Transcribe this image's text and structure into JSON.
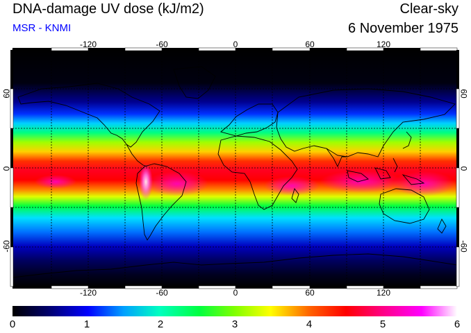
{
  "header": {
    "title": "DNA-damage UV dose (kJ/m2)",
    "credit": "MSR - KNMI",
    "sky_type": "Clear-sky",
    "date": "6 November 1975"
  },
  "map": {
    "projection": "equirectangular",
    "lon_range": [
      -180,
      180
    ],
    "lat_range": [
      -90,
      90
    ],
    "lon_ticks": [
      "-120",
      "-60",
      "0",
      "60",
      "120"
    ],
    "lat_ticks": [
      "60",
      "0",
      "-60"
    ],
    "gridlines": true
  },
  "colorbar": {
    "labels": [
      "0",
      "1",
      "2",
      "3",
      "4",
      "5",
      "6"
    ],
    "range": [
      0,
      6
    ],
    "colors": [
      "#000000",
      "#000070",
      "#0000ff",
      "#00a0ff",
      "#00ffff",
      "#00ff80",
      "#00ff00",
      "#c0ff00",
      "#ffff00",
      "#ffa000",
      "#ff4000",
      "#ff0000",
      "#ff0060",
      "#ff00a0",
      "#ff00ff",
      "#ff80ff",
      "#ffffff"
    ]
  }
}
